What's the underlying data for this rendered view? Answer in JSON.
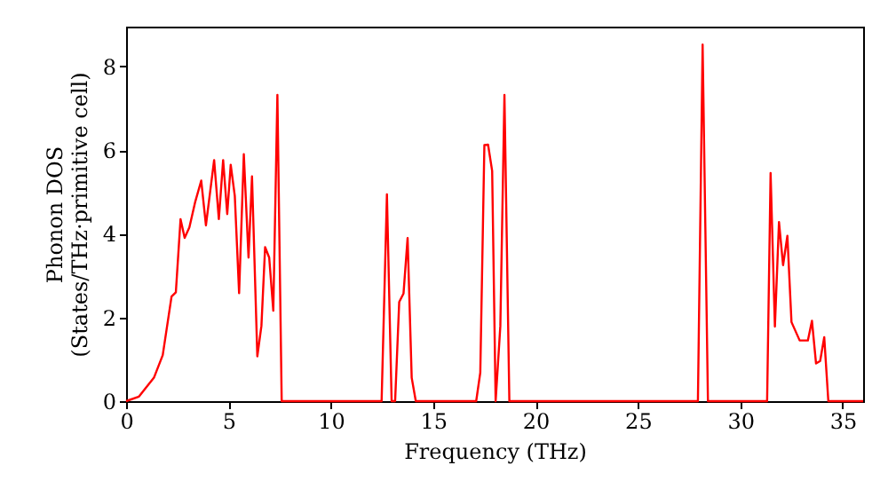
{
  "chart_data": {
    "type": "line",
    "xlabel": "Frequency (THz)",
    "ylabel": "Phonon DOS\n(States/THz·primitive cell)",
    "x": [
      0,
      0.63,
      1.36,
      1.79,
      2.22,
      2.43,
      2.66,
      2.86,
      3.09,
      3.38,
      3.67,
      3.9,
      4.3,
      4.53,
      4.74,
      4.94,
      5.11,
      5.31,
      5.52,
      5.75,
      5.98,
      6.15,
      6.41,
      6.61,
      6.79,
      6.99,
      7.19,
      7.39,
      7.6,
      12.48,
      12.74,
      12.97,
      13.14,
      13.34,
      13.55,
      13.75,
      13.95,
      14.15,
      17.1,
      17.3,
      17.5,
      17.68,
      17.88,
      18.05,
      18.28,
      18.48,
      18.72,
      27.93,
      28.16,
      28.42,
      31.31,
      31.48,
      31.69,
      31.89,
      32.09,
      32.3,
      32.5,
      32.9,
      33.3,
      33.5,
      33.7,
      33.9,
      34.1,
      34.3,
      36
    ],
    "series": [
      {
        "color": "#ff0000",
        "values": [
          0,
          0.11,
          0.56,
          1.1,
          2.5,
          2.6,
          4.35,
          3.9,
          4.15,
          4.77,
          5.27,
          4.2,
          5.76,
          4.35,
          5.76,
          4.47,
          5.65,
          4.9,
          2.58,
          5.9,
          3.43,
          5.37,
          1.07,
          1.8,
          3.68,
          3.43,
          2.16,
          7.32,
          0,
          0,
          4.94,
          0,
          0,
          2.37,
          2.57,
          3.9,
          0.56,
          0,
          0,
          0.68,
          6.12,
          6.13,
          5.5,
          0,
          1.8,
          7.32,
          0,
          0,
          8.52,
          0,
          0,
          5.45,
          1.78,
          4.28,
          3.25,
          3.95,
          1.89,
          1.45,
          1.45,
          1.92,
          0.9,
          0.96,
          1.53,
          0,
          0
        ]
      }
    ],
    "xlim": [
      0,
      36
    ],
    "ylim": [
      0,
      8.95
    ],
    "xticks": [
      0,
      5,
      10,
      15,
      20,
      25,
      30,
      35
    ],
    "yticks": [
      0,
      2,
      4,
      6,
      8
    ]
  }
}
